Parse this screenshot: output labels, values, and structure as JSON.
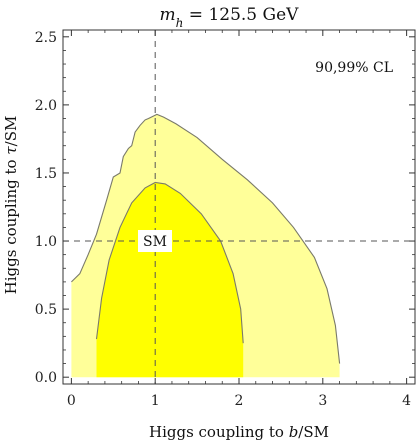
{
  "chart_data": {
    "type": "area",
    "title": "m_h = 125.5 GeV",
    "title_parts": {
      "var": "m",
      "sub": "h",
      "rest": " = 125.5 GeV"
    },
    "xlabel": "Higgs coupling to b/SM",
    "xlabel_parts": {
      "pre": "Higgs coupling to ",
      "it": "b",
      "post": "/SM"
    },
    "ylabel": "Higgs coupling to τ/SM",
    "ylabel_parts": {
      "pre": "Higgs coupling to ",
      "it": "τ",
      "post": "/SM"
    },
    "xlim": [
      -0.1,
      4.1
    ],
    "ylim": [
      -0.05,
      2.55
    ],
    "x_ticks": [
      0,
      1,
      2,
      3,
      4
    ],
    "x_tick_labels": [
      "0",
      "1",
      "2",
      "3",
      "4"
    ],
    "y_ticks": [
      0.0,
      0.5,
      1.0,
      1.5,
      2.0,
      2.5
    ],
    "y_tick_labels": [
      "0.0",
      "0.5",
      "1.0",
      "1.5",
      "2.0",
      "2.5"
    ],
    "annotation_cl": "90,99% CL",
    "sm_label": "SM",
    "sm_point": [
      1.0,
      1.0
    ],
    "colors": {
      "region_99": "#ffff99",
      "region_90": "#ffff00",
      "contour": "#7a7a6a",
      "reference_line": "#555555"
    },
    "regions": [
      {
        "name": "99% CL",
        "level": 0.99,
        "points": [
          [
            0.0,
            0.0
          ],
          [
            0.0,
            0.7
          ],
          [
            0.1,
            0.76
          ],
          [
            0.2,
            0.9
          ],
          [
            0.3,
            1.05
          ],
          [
            0.42,
            1.3
          ],
          [
            0.5,
            1.47
          ],
          [
            0.58,
            1.5
          ],
          [
            0.62,
            1.62
          ],
          [
            0.68,
            1.68
          ],
          [
            0.72,
            1.7
          ],
          [
            0.76,
            1.8
          ],
          [
            0.82,
            1.85
          ],
          [
            0.88,
            1.89
          ],
          [
            0.92,
            1.9
          ],
          [
            1.02,
            1.93
          ],
          [
            1.1,
            1.91
          ],
          [
            1.25,
            1.86
          ],
          [
            1.5,
            1.76
          ],
          [
            1.8,
            1.6
          ],
          [
            2.1,
            1.45
          ],
          [
            2.4,
            1.28
          ],
          [
            2.65,
            1.1
          ],
          [
            2.9,
            0.88
          ],
          [
            3.05,
            0.65
          ],
          [
            3.15,
            0.38
          ],
          [
            3.2,
            0.1
          ],
          [
            3.2,
            0.0
          ]
        ]
      },
      {
        "name": "90% CL",
        "level": 0.9,
        "points": [
          [
            0.3,
            0.0
          ],
          [
            0.3,
            0.28
          ],
          [
            0.36,
            0.58
          ],
          [
            0.45,
            0.86
          ],
          [
            0.58,
            1.1
          ],
          [
            0.72,
            1.28
          ],
          [
            0.88,
            1.39
          ],
          [
            1.0,
            1.43
          ],
          [
            1.12,
            1.42
          ],
          [
            1.3,
            1.35
          ],
          [
            1.55,
            1.2
          ],
          [
            1.78,
            1.0
          ],
          [
            1.93,
            0.76
          ],
          [
            2.02,
            0.5
          ],
          [
            2.05,
            0.25
          ],
          [
            2.05,
            0.0
          ]
        ]
      }
    ],
    "reference_lines": {
      "x": 1.0,
      "y": 1.0
    }
  }
}
